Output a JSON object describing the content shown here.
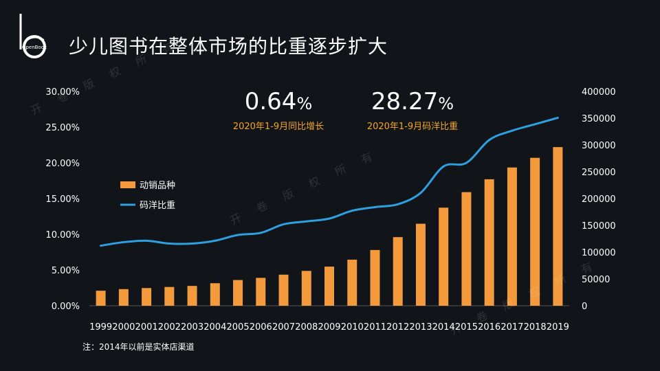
{
  "page": {
    "title": "少儿图书在整体市场的比重逐步扩大",
    "logo_text": "OpenBook",
    "note": "注：2014年以前是实体店渠道",
    "watermark_text": "开卷版权所有"
  },
  "stats": [
    {
      "value": "0.64",
      "unit": "%",
      "caption": "2020年1-9月同比增长"
    },
    {
      "value": "28.27",
      "unit": "%",
      "caption": "2020年1-9月码洋比重"
    }
  ],
  "colors": {
    "background": "#111418",
    "bar": "#f39a3c",
    "line": "#2e9fe0",
    "caption": "#f5a623"
  },
  "chart_data": {
    "type": "bar+line",
    "title": "少儿图书在整体市场的比重逐步扩大",
    "categories": [
      "1999",
      "2000",
      "2001",
      "2002",
      "2003",
      "2004",
      "2005",
      "2006",
      "2007",
      "2008",
      "2009",
      "2010",
      "2011",
      "2012",
      "2013",
      "2014",
      "2015",
      "2016",
      "2017",
      "2018",
      "2019"
    ],
    "series": [
      {
        "name": "动销品种",
        "type": "bar",
        "axis": "right",
        "values": [
          28000,
          31000,
          33000,
          35000,
          37000,
          42000,
          48000,
          52000,
          58000,
          65000,
          73000,
          86000,
          104000,
          128000,
          153000,
          183000,
          212000,
          236000,
          258000,
          276000,
          296000
        ]
      },
      {
        "name": "码洋比重",
        "type": "line",
        "axis": "left",
        "values": [
          8.4,
          8.9,
          9.1,
          8.7,
          8.7,
          9.1,
          9.9,
          10.2,
          11.4,
          11.8,
          12.2,
          13.3,
          13.8,
          14.2,
          15.8,
          19.5,
          20.0,
          23.2,
          24.5,
          25.4,
          26.3
        ]
      }
    ],
    "y_left": {
      "min": 0,
      "max": 30,
      "ticks": [
        "0.00%",
        "5.00%",
        "10.00%",
        "15.00%",
        "20.00%",
        "25.00%",
        "30.00%"
      ]
    },
    "y_right": {
      "min": 0,
      "max": 400000,
      "ticks": [
        "0",
        "50000",
        "100000",
        "150000",
        "200000",
        "250000",
        "300000",
        "350000",
        "400000"
      ]
    },
    "legend": [
      {
        "name": "动销品种",
        "kind": "bar"
      },
      {
        "name": "码洋比重",
        "kind": "line"
      }
    ],
    "legend_position": "upper-left",
    "grid": false
  }
}
